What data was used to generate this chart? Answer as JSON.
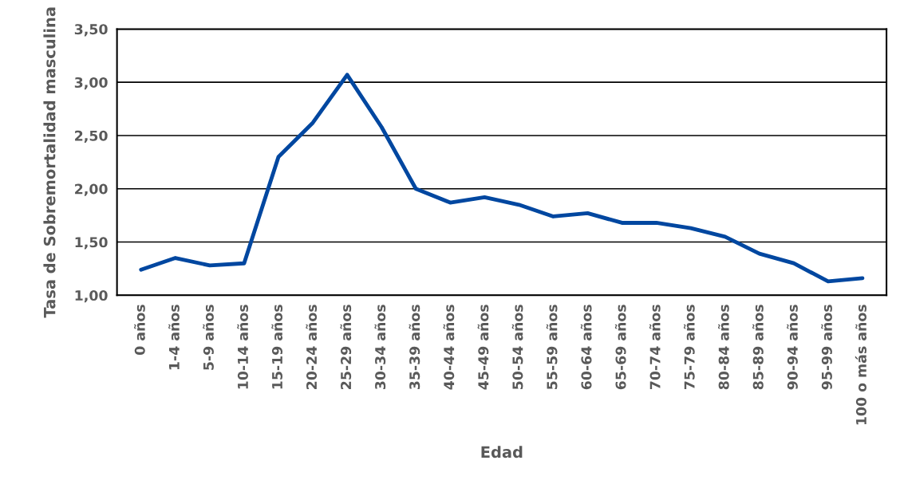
{
  "chart_data": {
    "type": "line",
    "xlabel": "Edad",
    "ylabel": "Tasa de Sobremortalidad masculina",
    "categories": [
      "0 años",
      "1-4 años",
      "5-9 años",
      "10-14 años",
      "15-19 años",
      "20-24 años",
      "25-29 años",
      "30-34 años",
      "35-39 años",
      "40-44 años",
      "45-49 años",
      "50-54 años",
      "55-59 años",
      "60-64 años",
      "65-69 años",
      "70-74 años",
      "75-79 años",
      "80-84 años",
      "85-89 años",
      "90-94 años",
      "95-99 años",
      "100 o más años"
    ],
    "series": [
      {
        "color": "#0047a0",
        "values": [
          1.24,
          1.35,
          1.28,
          1.3,
          2.3,
          2.62,
          3.07,
          2.58,
          2.0,
          1.87,
          1.92,
          1.85,
          1.74,
          1.77,
          1.68,
          1.68,
          1.63,
          1.55,
          1.39,
          1.3,
          1.13,
          1.16
        ]
      }
    ],
    "ylim": [
      1.0,
      3.5
    ],
    "yticks": [
      {
        "value": 1.0,
        "label": "1,00"
      },
      {
        "value": 1.5,
        "label": "1,50"
      },
      {
        "value": 2.0,
        "label": "2,00"
      },
      {
        "value": 2.5,
        "label": "2,50"
      },
      {
        "value": 3.0,
        "label": "3,00"
      },
      {
        "value": 3.5,
        "label": "3,50"
      }
    ],
    "grid": "y",
    "marker": "none",
    "line_style": "solid"
  }
}
